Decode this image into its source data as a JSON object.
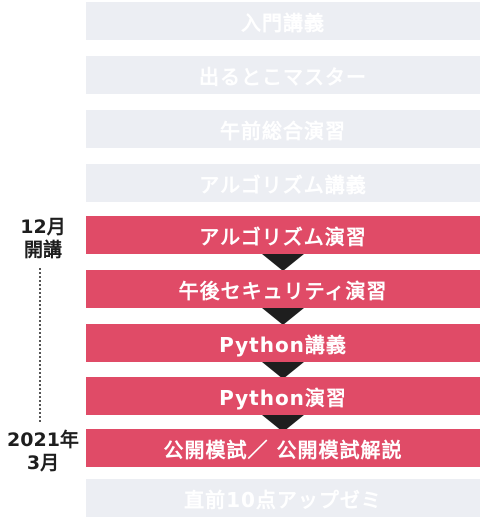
{
  "steps": [
    {
      "label": "入門講義",
      "state": "inactive"
    },
    {
      "label": "出るとこマスター",
      "state": "inactive"
    },
    {
      "label": "午前総合演習",
      "state": "inactive"
    },
    {
      "label": "アルゴリズム講義",
      "state": "inactive"
    },
    {
      "label": "アルゴリズム演習",
      "state": "active"
    },
    {
      "label": "午後セキュリティ演習",
      "state": "active"
    },
    {
      "label": "Python講義",
      "state": "active"
    },
    {
      "label": "Python演習",
      "state": "active"
    },
    {
      "label": "公開模試／ 公開模試解説",
      "state": "active"
    },
    {
      "label": "直前10点アップゼミ",
      "state": "inactive"
    }
  ],
  "timeline": {
    "start": {
      "line1": "12月",
      "line2": "開講"
    },
    "end": {
      "line1": "2021年",
      "line2": "3月"
    }
  },
  "colors": {
    "active": "#e04b67",
    "inactive": "#eceef3",
    "arrow": "#1e1e1e"
  }
}
